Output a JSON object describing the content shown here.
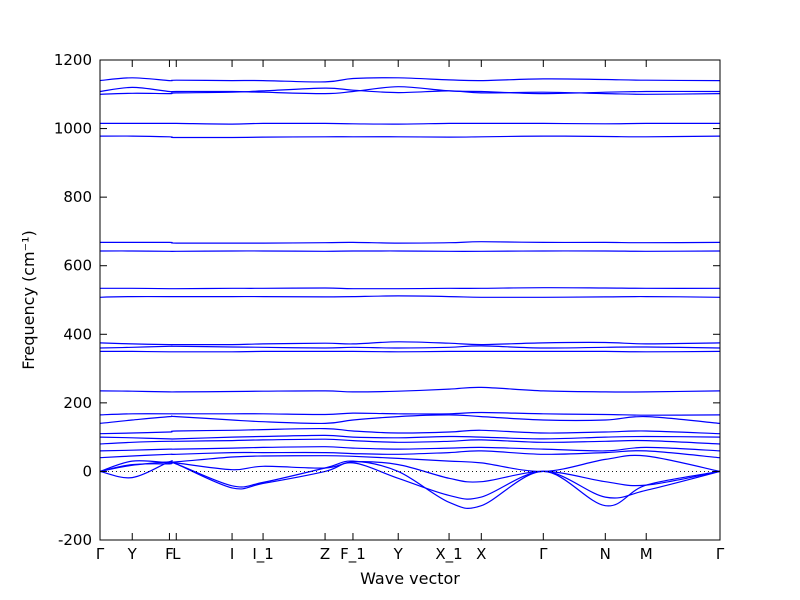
{
  "chart_data": {
    "type": "line",
    "xlabel": "Wave vector",
    "ylabel": "Frequency (cm⁻¹)",
    "ylim": [
      -200,
      1200
    ],
    "yticks": [
      -200,
      0,
      200,
      400,
      600,
      800,
      1000,
      1200
    ],
    "grid": false,
    "line_color": "#0000ff",
    "zero_line": {
      "y": 0,
      "style": "dotted"
    },
    "high_symmetry_points": [
      {
        "label": "Γ",
        "pos": 0.0
      },
      {
        "label": "Y",
        "pos": 0.052
      },
      {
        "label": "F",
        "pos": 0.112
      },
      {
        "label": "L",
        "pos": 0.123
      },
      {
        "label": "I",
        "pos": 0.213
      },
      {
        "label": "I_1",
        "pos": 0.263
      },
      {
        "label": "Z",
        "pos": 0.363
      },
      {
        "label": "F_1",
        "pos": 0.408
      },
      {
        "label": "Y",
        "pos": 0.481
      },
      {
        "label": "X_1",
        "pos": 0.563
      },
      {
        "label": "X",
        "pos": 0.615
      },
      {
        "label": "Γ",
        "pos": 0.715
      },
      {
        "label": "N",
        "pos": 0.815
      },
      {
        "label": "M",
        "pos": 0.881
      },
      {
        "label": "Γ",
        "pos": 1.0
      }
    ],
    "series": [
      {
        "values": [
          1100,
          1103,
          1102,
          1104,
          1106,
          1110,
          1118,
          1112,
          1105,
          1110,
          1104,
          1106,
          1102,
          1100,
          1102
        ]
      },
      {
        "values": [
          1140,
          1148,
          1140,
          1141,
          1140,
          1140,
          1136,
          1146,
          1148,
          1142,
          1140,
          1145,
          1143,
          1141,
          1140
        ]
      },
      {
        "values": [
          1108,
          1120,
          1108,
          1108,
          1108,
          1106,
          1102,
          1108,
          1122,
          1110,
          1108,
          1102,
          1106,
          1108,
          1108
        ]
      },
      {
        "values": [
          1015,
          1015,
          1015,
          1015,
          1013,
          1015,
          1015,
          1014,
          1013,
          1015,
          1015,
          1015,
          1014,
          1015,
          1015
        ]
      },
      {
        "values": [
          978,
          978,
          976,
          974,
          974,
          975,
          976,
          976,
          976,
          975,
          976,
          978,
          977,
          976,
          978
        ]
      },
      {
        "values": [
          668,
          668,
          668,
          666,
          666,
          666,
          667,
          668,
          666,
          667,
          670,
          668,
          668,
          667,
          668
        ]
      },
      {
        "values": [
          643,
          643,
          642,
          642,
          643,
          643,
          642,
          643,
          643,
          642,
          642,
          643,
          643,
          642,
          643
        ]
      },
      {
        "values": [
          534,
          534,
          533,
          533,
          534,
          534,
          535,
          533,
          533,
          534,
          534,
          536,
          535,
          534,
          534
        ]
      },
      {
        "values": [
          508,
          510,
          510,
          510,
          510,
          510,
          509,
          510,
          512,
          510,
          508,
          508,
          509,
          510,
          508
        ]
      },
      {
        "values": [
          375,
          372,
          370,
          370,
          370,
          372,
          374,
          372,
          378,
          374,
          370,
          375,
          376,
          372,
          375
        ]
      },
      {
        "values": [
          360,
          362,
          365,
          365,
          363,
          362,
          360,
          362,
          360,
          362,
          366,
          360,
          362,
          363,
          360
        ]
      },
      {
        "values": [
          350,
          350,
          349,
          349,
          349,
          350,
          350,
          350,
          349,
          350,
          350,
          350,
          350,
          349,
          350
        ]
      },
      {
        "values": [
          235,
          234,
          232,
          232,
          233,
          234,
          235,
          232,
          234,
          240,
          245,
          235,
          232,
          232,
          235
        ]
      },
      {
        "values": [
          165,
          168,
          168,
          168,
          168,
          168,
          166,
          170,
          168,
          168,
          172,
          168,
          166,
          164,
          165
        ]
      },
      {
        "values": [
          140,
          150,
          160,
          160,
          150,
          145,
          140,
          150,
          160,
          165,
          160,
          150,
          150,
          160,
          140
        ]
      },
      {
        "values": [
          110,
          112,
          115,
          118,
          120,
          122,
          125,
          118,
          112,
          115,
          120,
          112,
          115,
          118,
          110
        ]
      },
      {
        "values": [
          100,
          98,
          95,
          95,
          100,
          102,
          105,
          100,
          98,
          102,
          100,
          95,
          100,
          102,
          100
        ]
      },
      {
        "values": [
          80,
          85,
          88,
          88,
          90,
          92,
          94,
          90,
          85,
          88,
          92,
          85,
          88,
          90,
          80
        ]
      },
      {
        "values": [
          60,
          62,
          65,
          65,
          68,
          70,
          72,
          68,
          65,
          68,
          70,
          65,
          60,
          70,
          60
        ]
      },
      {
        "values": [
          40,
          45,
          50,
          50,
          55,
          55,
          55,
          52,
          50,
          55,
          60,
          50,
          55,
          60,
          40
        ]
      },
      {
        "values": [
          0,
          18,
          28,
          28,
          42,
          45,
          46,
          44,
          38,
          30,
          25,
          0,
          35,
          45,
          0
        ]
      },
      {
        "values": [
          0,
          -18,
          28,
          25,
          5,
          15,
          10,
          28,
          20,
          -20,
          -30,
          0,
          -30,
          -40,
          0
        ]
      },
      {
        "values": [
          0,
          30,
          25,
          22,
          -48,
          -35,
          0,
          25,
          -20,
          -70,
          -75,
          0,
          -75,
          -55,
          0
        ]
      },
      {
        "values": [
          0,
          20,
          22,
          22,
          -42,
          -32,
          10,
          30,
          0,
          -90,
          -100,
          0,
          -100,
          -40,
          0
        ]
      }
    ]
  }
}
